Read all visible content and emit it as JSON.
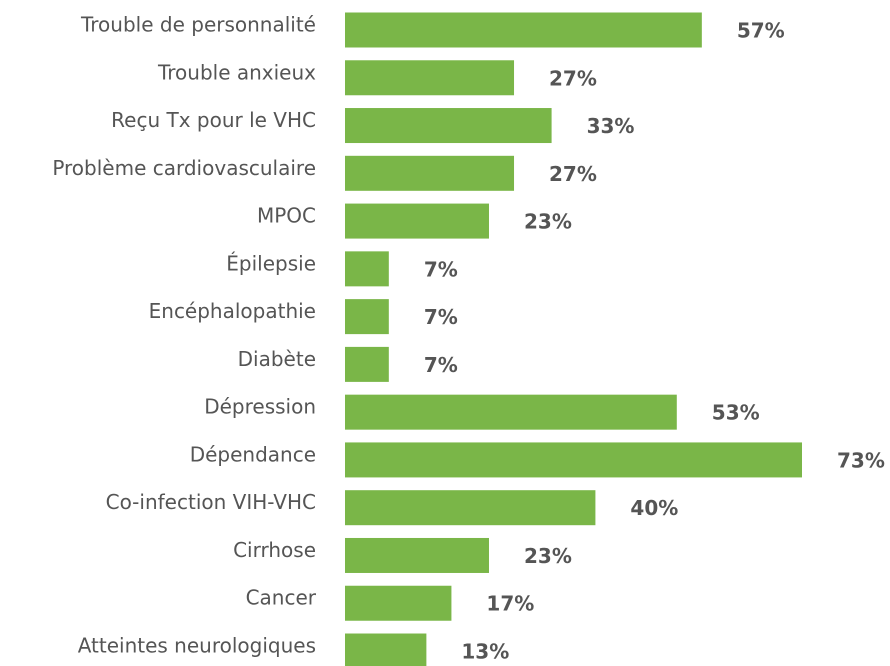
{
  "chart_data": {
    "type": "bar",
    "orientation": "horizontal",
    "categories": [
      "Trouble de personnalité",
      "Trouble anxieux",
      "Reçu Tx pour le VHC",
      "Problème cardiovasculaire",
      "MPOC",
      "Épilepsie",
      "Encéphalopathie",
      "Diabète",
      "Dépression",
      "Dépendance",
      "Co-infection VIH-VHC",
      "Cirrhose",
      "Cancer",
      "Atteintes neurologiques"
    ],
    "values": [
      57,
      27,
      33,
      27,
      23,
      7,
      7,
      7,
      53,
      73,
      40,
      23,
      17,
      13
    ],
    "value_labels": [
      "57%",
      "27%",
      "33%",
      "27%",
      "23%",
      "7%",
      "7%",
      "7%",
      "53%",
      "73%",
      "40%",
      "23%",
      "17%",
      "13%"
    ],
    "color": "#7ab648"
  }
}
